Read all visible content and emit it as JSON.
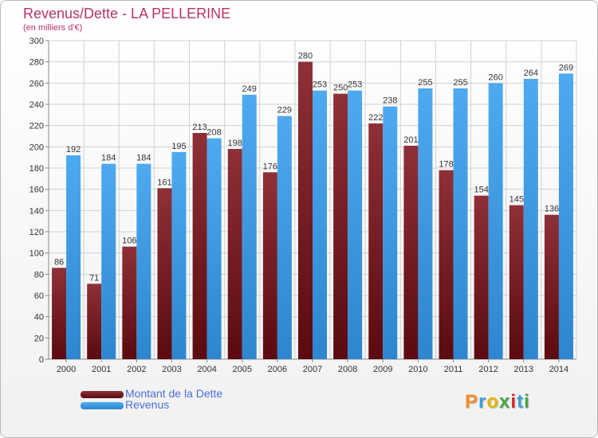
{
  "header": {
    "title": "Revenus/Dette - LA PELLERINE",
    "subtitle": "(en milliers d'€)"
  },
  "chart_data": {
    "type": "bar",
    "title": "Revenus/Dette - LA PELLERINE",
    "subtitle": "(en milliers d'€)",
    "xlabel": "",
    "ylabel": "",
    "categories": [
      "2000",
      "2001",
      "2002",
      "2003",
      "2004",
      "2005",
      "2006",
      "2007",
      "2008",
      "2009",
      "2010",
      "2011",
      "2012",
      "2013",
      "2014"
    ],
    "series": [
      {
        "name": "Montant de la Dette",
        "color": "#7a1f26",
        "values": [
          86,
          71,
          106,
          161,
          213,
          198,
          176,
          280,
          250,
          222,
          201,
          178,
          154,
          145,
          136
        ]
      },
      {
        "name": "Revenus",
        "color": "#3d9ee5",
        "values": [
          192,
          184,
          184,
          195,
          208,
          249,
          229,
          253,
          253,
          238,
          255,
          255,
          260,
          264,
          269
        ]
      }
    ],
    "ylim": [
      0,
      300
    ],
    "yticks": [
      0,
      20,
      40,
      60,
      80,
      100,
      120,
      140,
      160,
      180,
      200,
      220,
      240,
      260,
      280,
      300
    ],
    "grid": true,
    "legend_position": "bottom-left"
  },
  "legend": {
    "items": [
      {
        "label": "Montant de la Dette",
        "color": "#7a1f26"
      },
      {
        "label": "Revenus",
        "color": "#3d9ee5"
      }
    ]
  },
  "logo": {
    "text": "Proxiti",
    "letters": [
      "P",
      "r",
      "o",
      "x",
      "i",
      "t",
      "i"
    ],
    "colors": [
      "#f28c28",
      "#3aa0d8",
      "#e8b400",
      "#45a845",
      "#d8262f",
      "#3aa0d8",
      "#45a845"
    ]
  }
}
